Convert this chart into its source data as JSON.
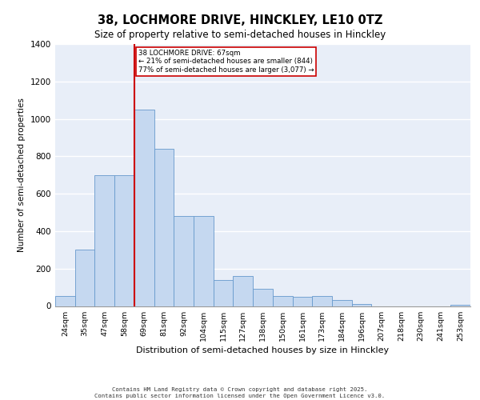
{
  "title_line1": "38, LOCHMORE DRIVE, HINCKLEY, LE10 0TZ",
  "title_line2": "Size of property relative to semi-detached houses in Hinckley",
  "xlabel": "Distribution of semi-detached houses by size in Hinckley",
  "ylabel": "Number of semi-detached properties",
  "categories": [
    "24sqm",
    "35sqm",
    "47sqm",
    "58sqm",
    "69sqm",
    "81sqm",
    "92sqm",
    "104sqm",
    "115sqm",
    "127sqm",
    "138sqm",
    "150sqm",
    "161sqm",
    "173sqm",
    "184sqm",
    "196sqm",
    "207sqm",
    "218sqm",
    "230sqm",
    "241sqm",
    "253sqm"
  ],
  "values": [
    55,
    300,
    700,
    700,
    1050,
    840,
    480,
    480,
    140,
    160,
    90,
    55,
    50,
    55,
    30,
    10,
    0,
    0,
    0,
    0,
    5
  ],
  "bar_color": "#c5d8f0",
  "bar_edge_color": "#6699cc",
  "vline_color": "#cc0000",
  "vline_x": 4.5,
  "annotation_label": "38 LOCHMORE DRIVE: 67sqm",
  "pct_smaller": "21% of semi-detached houses are smaller (844)",
  "pct_larger": "77% of semi-detached houses are larger (3,077)",
  "annotation_box_color": "#cc0000",
  "ylim": [
    0,
    1400
  ],
  "yticks": [
    0,
    200,
    400,
    600,
    800,
    1000,
    1200,
    1400
  ],
  "background_color": "#e8eef8",
  "grid_color": "#ffffff",
  "footer_line1": "Contains HM Land Registry data © Crown copyright and database right 2025.",
  "footer_line2": "Contains public sector information licensed under the Open Government Licence v3.0."
}
